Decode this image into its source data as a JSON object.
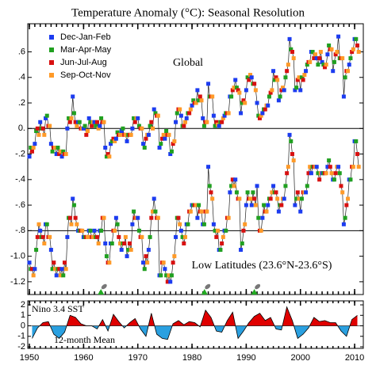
{
  "chart_data": {
    "type": "line",
    "title": "Temperature Anomaly (°C): Seasonal Resolution",
    "global_label": "Global",
    "low_label": "Low Latitudes (23.6°N-23.6°S)",
    "xlim": [
      1949.7,
      2011.6
    ],
    "ylim": [
      -1.3,
      0.82
    ],
    "xticks": [
      1950,
      1960,
      1970,
      1980,
      1990,
      2000,
      2010
    ],
    "yticks": [
      {
        "value": 0.6,
        "label": ".6"
      },
      {
        "value": 0.4,
        "label": ".4"
      },
      {
        "value": 0.2,
        "label": ".2"
      },
      {
        "value": 0,
        "label": "0."
      },
      {
        "value": -0.2,
        "label": "-.2"
      },
      {
        "value": -0.4,
        "label": "-.4"
      },
      {
        "value": -0.6,
        "label": "-.6"
      },
      {
        "value": -0.8,
        "label": "-.8"
      },
      {
        "value": -1,
        "label": "-1.0"
      },
      {
        "value": -1.2,
        "label": "-1.2"
      }
    ],
    "reference_lines": [
      0,
      -0.8
    ],
    "years": [
      1950,
      1951,
      1952,
      1953,
      1954,
      1955,
      1956,
      1957,
      1958,
      1959,
      1960,
      1961,
      1962,
      1963,
      1964,
      1965,
      1966,
      1967,
      1968,
      1969,
      1970,
      1971,
      1972,
      1973,
      1974,
      1975,
      1976,
      1977,
      1978,
      1979,
      1980,
      1981,
      1982,
      1983,
      1984,
      1985,
      1986,
      1987,
      1988,
      1989,
      1990,
      1991,
      1992,
      1993,
      1994,
      1995,
      1996,
      1997,
      1998,
      1999,
      2000,
      2001,
      2002,
      2003,
      2004,
      2005,
      2006,
      2007,
      2008,
      2009,
      2010
    ],
    "series": [
      {
        "name": "Dec-Jan-Feb",
        "color": "#1c3cf0",
        "global": [
          -0.22,
          -0.12,
          0.05,
          0.08,
          -0.12,
          -0.2,
          -0.22,
          0.0,
          0.25,
          0.05,
          0.0,
          0.08,
          0.05,
          0.02,
          -0.15,
          -0.12,
          -0.08,
          -0.02,
          -0.1,
          0.0,
          0.08,
          -0.12,
          -0.05,
          0.15,
          -0.15,
          -0.08,
          -0.2,
          0.05,
          0.1,
          0.08,
          0.18,
          0.3,
          0.08,
          0.35,
          0.1,
          0.02,
          0.1,
          0.25,
          0.38,
          0.12,
          0.3,
          0.4,
          0.2,
          0.12,
          0.18,
          0.45,
          0.22,
          0.3,
          0.7,
          0.3,
          0.3,
          0.45,
          0.6,
          0.55,
          0.52,
          0.58,
          0.45,
          0.72,
          0.25,
          0.5,
          0.7
        ],
        "low": [
          -1.05,
          -1.1,
          -0.8,
          -0.75,
          -0.95,
          -1.15,
          -1.1,
          -0.85,
          -0.55,
          -0.8,
          -0.85,
          -0.8,
          -0.8,
          -0.8,
          -0.9,
          -0.9,
          -0.7,
          -0.95,
          -1.0,
          -0.75,
          -0.7,
          -1.05,
          -0.95,
          -0.55,
          -1.15,
          -1.1,
          -1.2,
          -0.85,
          -0.8,
          -0.75,
          -0.6,
          -0.7,
          -0.75,
          -0.3,
          -0.75,
          -0.95,
          -0.8,
          -0.5,
          -0.4,
          -0.95,
          -0.6,
          -0.6,
          -0.45,
          -0.7,
          -0.6,
          -0.45,
          -0.65,
          -0.55,
          -0.05,
          -0.6,
          -0.65,
          -0.5,
          -0.35,
          -0.3,
          -0.35,
          -0.3,
          -0.4,
          -0.3,
          -0.75,
          -0.4,
          -0.1
        ]
      },
      {
        "name": "Mar-Apr-May",
        "color": "#20a020",
        "global": [
          -0.15,
          -0.02,
          0.0,
          0.1,
          -0.18,
          -0.15,
          -0.18,
          0.08,
          0.12,
          0.05,
          0.02,
          0.05,
          0.02,
          0.08,
          -0.22,
          -0.1,
          -0.03,
          0.0,
          -0.05,
          0.08,
          0.02,
          -0.15,
          0.02,
          0.12,
          -0.12,
          -0.02,
          -0.18,
          0.12,
          0.02,
          0.12,
          0.22,
          0.22,
          0.02,
          0.25,
          0.02,
          0.05,
          0.12,
          0.25,
          0.32,
          0.2,
          0.4,
          0.35,
          0.1,
          0.15,
          0.25,
          0.38,
          0.25,
          0.4,
          0.62,
          0.32,
          0.4,
          0.5,
          0.6,
          0.5,
          0.5,
          0.65,
          0.52,
          0.55,
          0.4,
          0.55,
          0.7
        ],
        "low": [
          -1.1,
          -0.95,
          -0.85,
          -0.75,
          -1.1,
          -1.1,
          -1.15,
          -0.7,
          -0.6,
          -0.8,
          -0.85,
          -0.8,
          -0.85,
          -0.8,
          -1.0,
          -0.9,
          -0.75,
          -0.9,
          -0.95,
          -0.65,
          -0.8,
          -1.1,
          -0.85,
          -0.65,
          -1.15,
          -1.15,
          -1.15,
          -0.7,
          -0.85,
          -0.75,
          -0.6,
          -0.6,
          -0.75,
          -0.45,
          -0.8,
          -0.95,
          -0.8,
          -0.45,
          -0.5,
          -0.9,
          -0.5,
          -0.5,
          -0.7,
          -0.6,
          -0.55,
          -0.5,
          -0.6,
          -0.45,
          -0.1,
          -0.55,
          -0.55,
          -0.45,
          -0.3,
          -0.35,
          -0.35,
          -0.25,
          -0.4,
          -0.35,
          -0.7,
          -0.4,
          -0.1
        ]
      },
      {
        "name": "Jun-Jul-Aug",
        "color": "#d81010",
        "global": [
          -0.18,
          0.0,
          0.0,
          0.02,
          -0.15,
          -0.2,
          -0.2,
          0.05,
          0.05,
          0.0,
          -0.05,
          0.02,
          0.05,
          0.05,
          -0.2,
          -0.08,
          -0.05,
          -0.05,
          -0.05,
          0.05,
          0.0,
          -0.08,
          0.05,
          0.1,
          -0.08,
          -0.05,
          -0.12,
          0.15,
          0.02,
          0.12,
          0.2,
          0.25,
          0.05,
          0.25,
          0.05,
          0.05,
          0.12,
          0.3,
          0.3,
          0.22,
          0.38,
          0.35,
          0.08,
          0.15,
          0.28,
          0.4,
          0.3,
          0.45,
          0.6,
          0.38,
          0.38,
          0.52,
          0.55,
          0.55,
          0.48,
          0.62,
          0.58,
          0.55,
          0.45,
          0.6,
          0.65
        ],
        "low": [
          -1.1,
          -0.85,
          -0.85,
          -0.85,
          -1.05,
          -1.1,
          -1.05,
          -0.7,
          -0.7,
          -0.8,
          -0.85,
          -0.85,
          -0.85,
          -0.7,
          -1.05,
          -0.8,
          -0.85,
          -0.9,
          -0.9,
          -0.7,
          -0.85,
          -1.0,
          -0.7,
          -0.7,
          -1.05,
          -1.2,
          -1.05,
          -0.7,
          -0.9,
          -0.65,
          -0.6,
          -0.65,
          -0.65,
          -0.5,
          -0.85,
          -0.9,
          -0.7,
          -0.4,
          -0.55,
          -0.8,
          -0.55,
          -0.55,
          -0.8,
          -0.65,
          -0.55,
          -0.5,
          -0.6,
          -0.35,
          -0.2,
          -0.5,
          -0.5,
          -0.35,
          -0.3,
          -0.4,
          -0.35,
          -0.3,
          -0.35,
          -0.45,
          -0.6,
          -0.3,
          -0.2
        ]
      },
      {
        "name": "Sep-Oct-Nov",
        "color": "#ff9a28",
        "global": [
          -0.15,
          -0.05,
          -0.05,
          0.02,
          -0.15,
          -0.18,
          -0.2,
          0.08,
          0.02,
          0.0,
          -0.02,
          0.05,
          0.0,
          0.05,
          -0.22,
          -0.1,
          -0.05,
          -0.05,
          -0.05,
          0.08,
          0.0,
          -0.05,
          0.0,
          0.1,
          -0.05,
          -0.05,
          -0.1,
          0.15,
          0.05,
          0.15,
          0.2,
          0.22,
          0.05,
          0.25,
          0.03,
          0.08,
          0.12,
          0.32,
          0.28,
          0.2,
          0.42,
          0.3,
          0.1,
          0.18,
          0.3,
          0.38,
          0.32,
          0.5,
          0.55,
          0.4,
          0.42,
          0.52,
          0.58,
          0.6,
          0.5,
          0.62,
          0.6,
          0.55,
          0.45,
          0.62,
          0.6
        ],
        "low": [
          -1.15,
          -0.75,
          -0.9,
          -0.85,
          -1.1,
          -1.15,
          -1.1,
          -0.75,
          -0.75,
          -0.8,
          -0.85,
          -0.85,
          -0.9,
          -0.7,
          -1.05,
          -0.8,
          -0.9,
          -0.85,
          -0.95,
          -0.7,
          -0.85,
          -1.05,
          -0.65,
          -0.7,
          -1.05,
          -1.15,
          -1.0,
          -0.75,
          -0.85,
          -0.65,
          -0.6,
          -0.65,
          -0.65,
          -0.55,
          -0.8,
          -0.85,
          -0.7,
          -0.45,
          -0.55,
          -0.75,
          -0.55,
          -0.6,
          -0.8,
          -0.65,
          -0.5,
          -0.55,
          -0.55,
          -0.3,
          -0.25,
          -0.55,
          -0.5,
          -0.3,
          -0.3,
          -0.35,
          -0.35,
          -0.35,
          -0.3,
          -0.5,
          -0.55,
          -0.3,
          -0.3
        ]
      }
    ],
    "volcanoes": [
      1963.2,
      1982.3,
      1991.5
    ],
    "nino": {
      "title": "Nino 3.4 SST",
      "mean_label": "12-month Mean",
      "ylim": [
        -2.15,
        2.38
      ],
      "yticks": [
        2,
        1,
        0,
        -1,
        -2
      ],
      "colors": [
        "#e00000",
        "#2aa0e0"
      ],
      "values": [
        -1.2,
        -0.2,
        0.3,
        0.4,
        -0.8,
        -1.2,
        -0.6,
        1.0,
        0.8,
        0.2,
        0.0,
        0.0,
        -0.3,
        0.6,
        -0.5,
        1.1,
        0.4,
        -0.2,
        0.3,
        0.7,
        -0.3,
        -1.0,
        1.2,
        -0.8,
        -1.2,
        -1.3,
        0.2,
        0.5,
        0.1,
        0.4,
        0.3,
        -0.1,
        1.5,
        0.8,
        -0.5,
        -0.6,
        0.5,
        1.3,
        -1.2,
        -0.5,
        0.3,
        0.9,
        1.2,
        0.5,
        0.8,
        -0.3,
        -0.4,
        1.8,
        0.5,
        -1.2,
        -0.8,
        -0.2,
        0.8,
        0.4,
        0.5,
        0.3,
        0.3,
        -0.5,
        -1.0,
        0.6,
        1.0
      ]
    }
  }
}
